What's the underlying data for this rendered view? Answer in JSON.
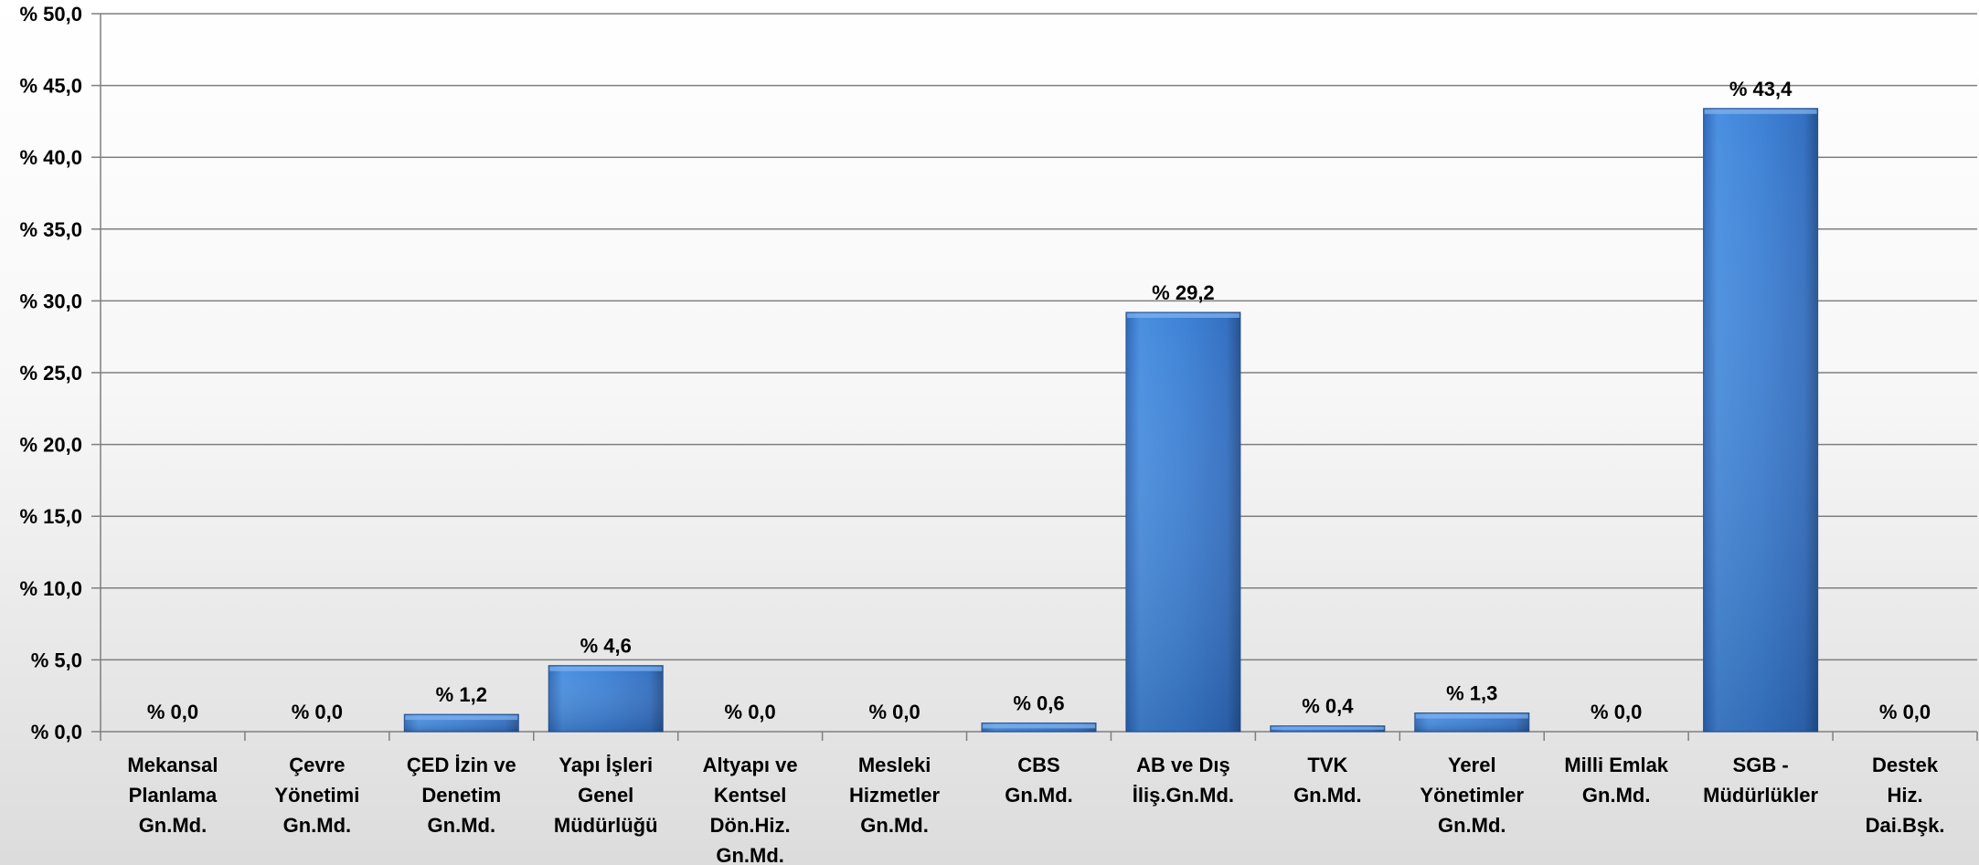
{
  "chart_data": {
    "type": "bar",
    "categories": [
      [
        "Mekansal",
        "Planlama",
        "Gn.Md."
      ],
      [
        "Çevre",
        "Yönetimi",
        "Gn.Md."
      ],
      [
        "ÇED İzin ve",
        "Denetim",
        "Gn.Md."
      ],
      [
        "Yapı İşleri",
        "Genel",
        "Müdürlüğü"
      ],
      [
        "Altyapı ve",
        "Kentsel",
        "Dön.Hiz.",
        "Gn.Md."
      ],
      [
        "Mesleki",
        "Hizmetler",
        "Gn.Md."
      ],
      [
        "CBS",
        "Gn.Md."
      ],
      [
        "AB ve Dış",
        "İliş.Gn.Md."
      ],
      [
        "TVK",
        "Gn.Md."
      ],
      [
        "Yerel",
        "Yönetimler",
        "Gn.Md."
      ],
      [
        "Milli Emlak",
        "Gn.Md."
      ],
      [
        "SGB -",
        "Müdürlükler"
      ],
      [
        "Destek",
        "Hiz.",
        "Dai.Bşk."
      ]
    ],
    "values": [
      0.0,
      0.0,
      1.2,
      4.6,
      0.0,
      0.0,
      0.6,
      29.2,
      0.4,
      1.3,
      0.0,
      43.4,
      0.0
    ],
    "data_labels": [
      "% 0,0",
      "% 0,0",
      "% 1,2",
      "% 4,6",
      "% 0,0",
      "% 0,0",
      "% 0,6",
      "% 29,2",
      "% 0,4",
      "% 1,3",
      "% 0,0",
      "% 43,4",
      "% 0,0"
    ],
    "yticks": [
      0,
      5,
      10,
      15,
      20,
      25,
      30,
      35,
      40,
      45,
      50
    ],
    "ytick_labels": [
      "% 0,0",
      "% 5,0",
      "% 10,0",
      "% 15,0",
      "% 20,0",
      "% 25,0",
      "% 30,0",
      "% 35,0",
      "% 40,0",
      "% 45,0",
      "% 50,0"
    ],
    "ylim": [
      0,
      50
    ],
    "grid": true,
    "legend": "none",
    "colors": {
      "bar_light": "#4a8fe0",
      "bar_mid": "#3b78cc",
      "bar_dark": "#2a5a9e",
      "grid": "#7f7f7f",
      "axis": "#7f7f7f"
    }
  }
}
